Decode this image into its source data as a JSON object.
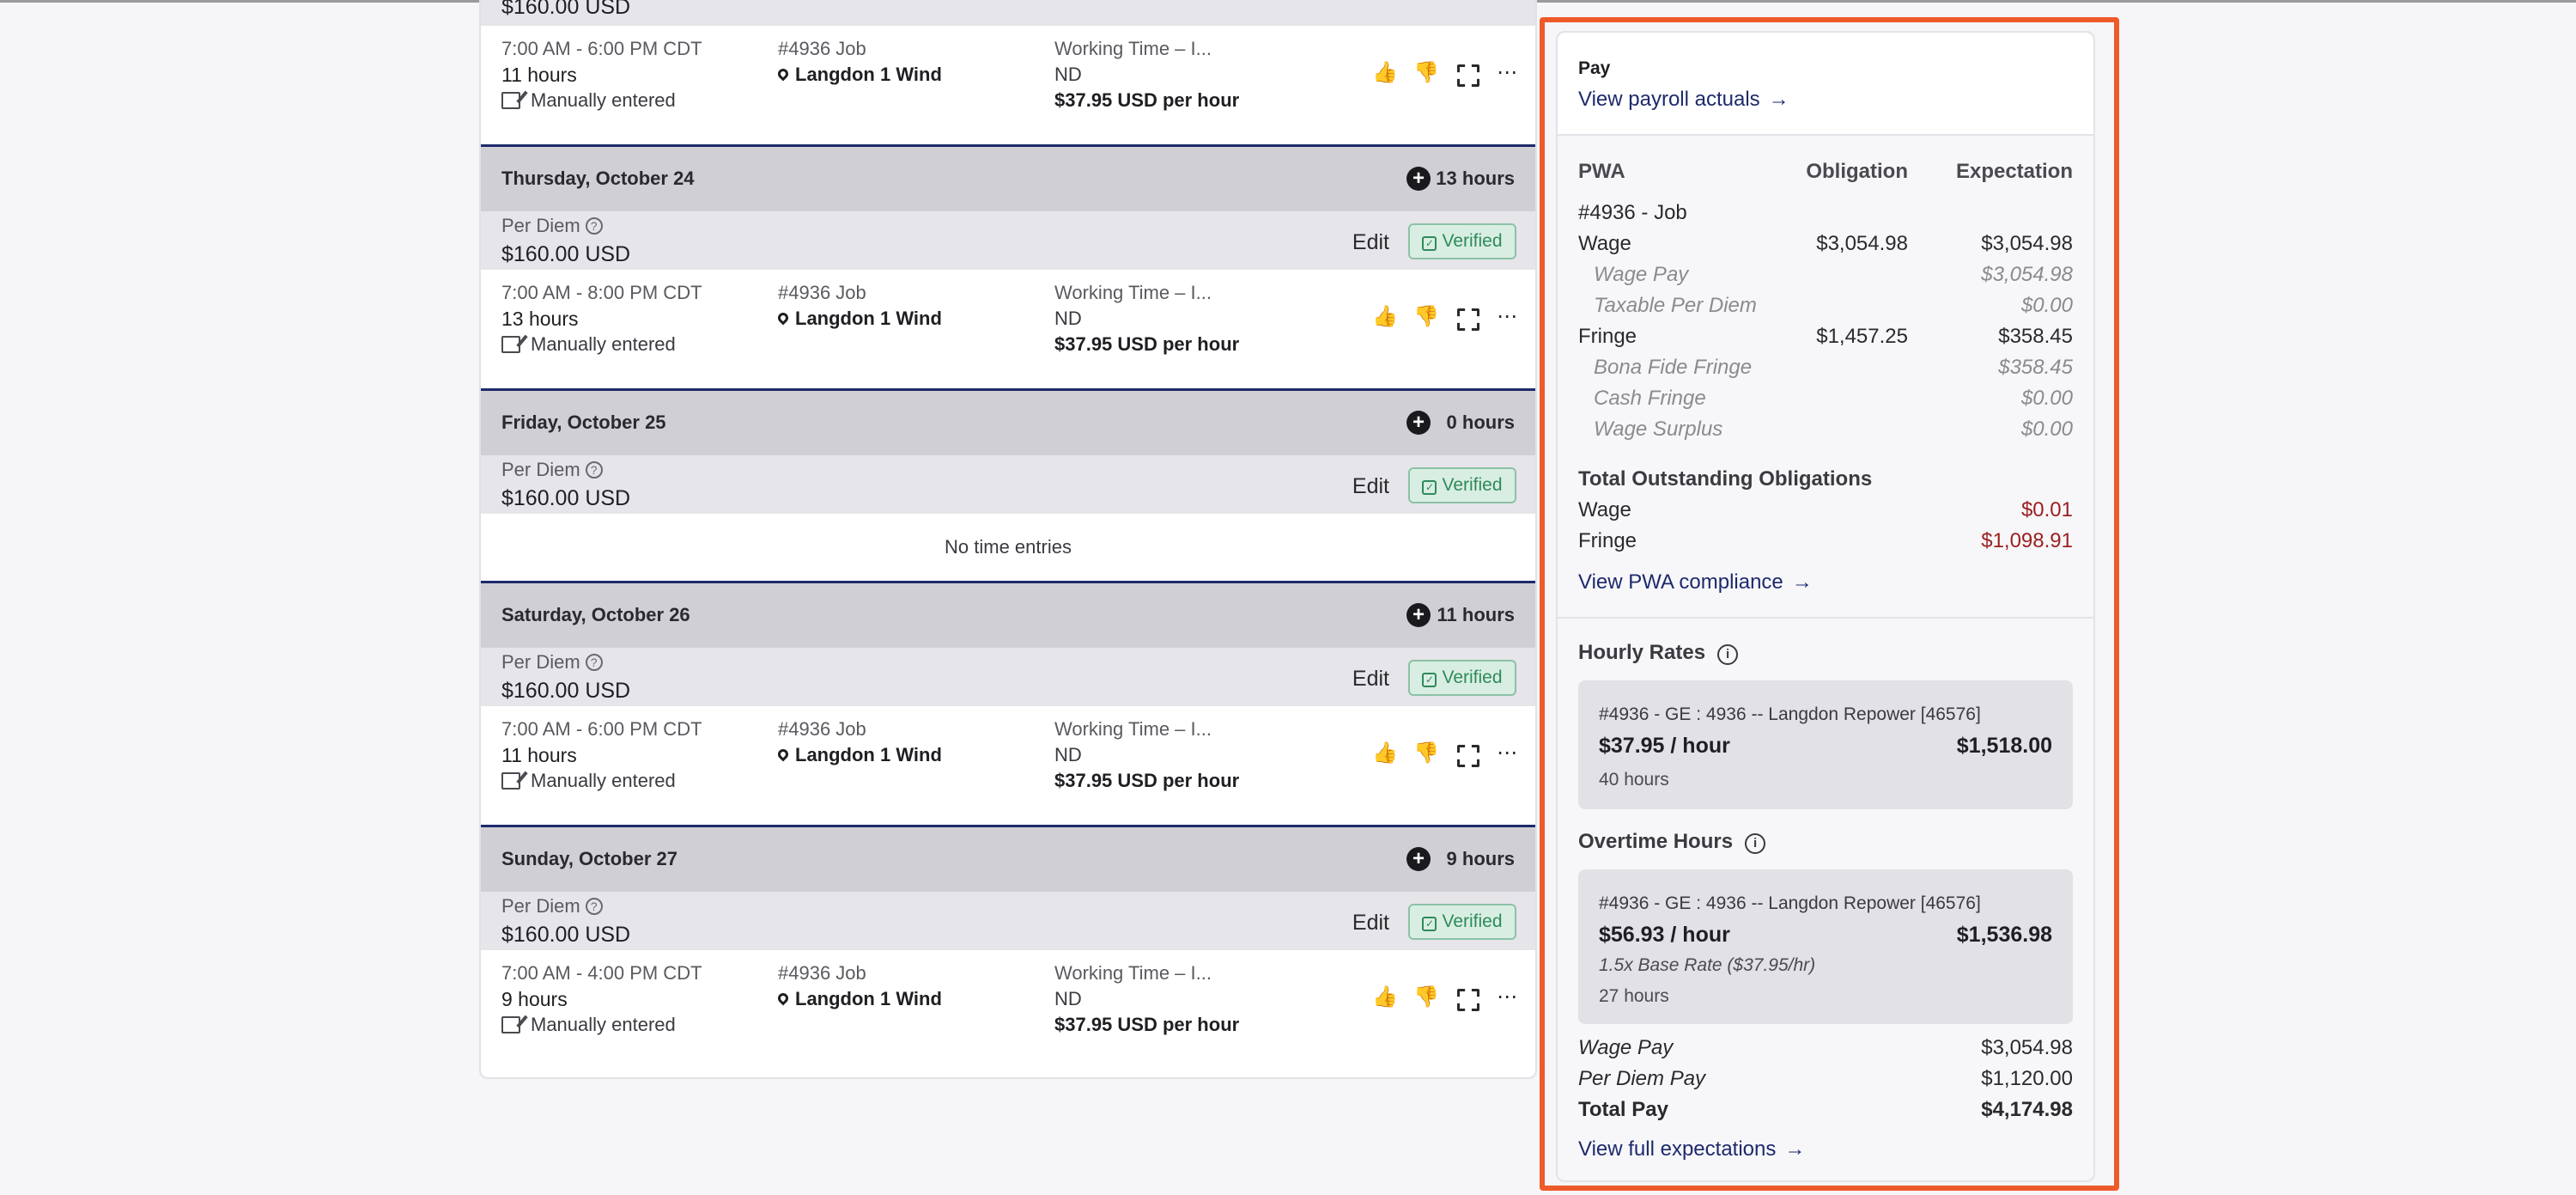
{
  "top_entry": {
    "per_diem_amount": "$160.00 USD",
    "time_range": "7:00 AM - 6:00 PM CDT",
    "hours": "11 hours",
    "entry_method": "Manually entered",
    "job": "#4936 Job",
    "location": "Langdon 1 Wind",
    "classification": "Working Time – I...",
    "state": "ND",
    "rate": "$37.95 USD per hour"
  },
  "days": [
    {
      "name": "Thursday, October 24",
      "hours": "13 hours",
      "per_diem_label": "Per Diem",
      "per_diem_amount": "$160.00 USD",
      "edit_label": "Edit",
      "verified_label": "Verified",
      "entry": {
        "time_range": "7:00 AM - 8:00 PM CDT",
        "hours": "13 hours",
        "entry_method": "Manually entered",
        "job": "#4936 Job",
        "location": "Langdon 1 Wind",
        "classification": "Working Time – I...",
        "state": "ND",
        "rate": "$37.95 USD per hour"
      }
    },
    {
      "name": "Friday, October 25",
      "hours": "0 hours",
      "per_diem_label": "Per Diem",
      "per_diem_amount": "$160.00 USD",
      "edit_label": "Edit",
      "verified_label": "Verified",
      "no_entries": "No time entries"
    },
    {
      "name": "Saturday, October 26",
      "hours": "11 hours",
      "per_diem_label": "Per Diem",
      "per_diem_amount": "$160.00 USD",
      "edit_label": "Edit",
      "verified_label": "Verified",
      "entry": {
        "time_range": "7:00 AM - 6:00 PM CDT",
        "hours": "11 hours",
        "entry_method": "Manually entered",
        "job": "#4936 Job",
        "location": "Langdon 1 Wind",
        "classification": "Working Time – I...",
        "state": "ND",
        "rate": "$37.95 USD per hour"
      }
    },
    {
      "name": "Sunday, October 27",
      "hours": "9 hours",
      "per_diem_label": "Per Diem",
      "per_diem_amount": "$160.00 USD",
      "edit_label": "Edit",
      "verified_label": "Verified",
      "entry": {
        "time_range": "7:00 AM - 4:00 PM CDT",
        "hours": "9 hours",
        "entry_method": "Manually entered",
        "job": "#4936 Job",
        "location": "Langdon 1 Wind",
        "classification": "Working Time – I...",
        "state": "ND",
        "rate": "$37.95 USD per hour"
      }
    }
  ],
  "pay": {
    "title": "Pay",
    "payroll_link": "View payroll actuals",
    "table": {
      "col_pwa": "PWA",
      "col_obligation": "Obligation",
      "col_expectation": "Expectation",
      "job": "#4936 - Job",
      "rows": [
        {
          "label": "Wage",
          "obligation": "$3,054.98",
          "expectation": "$3,054.98"
        },
        {
          "label": "Wage Pay",
          "obligation": "",
          "expectation": "$3,054.98"
        },
        {
          "label": "Taxable Per Diem",
          "obligation": "",
          "expectation": "$0.00"
        },
        {
          "label": "Fringe",
          "obligation": "$1,457.25",
          "expectation": "$358.45"
        },
        {
          "label": "Bona Fide Fringe",
          "obligation": "",
          "expectation": "$358.45"
        },
        {
          "label": "Cash Fringe",
          "obligation": "",
          "expectation": "$0.00"
        },
        {
          "label": "Wage Surplus",
          "obligation": "",
          "expectation": "$0.00"
        }
      ]
    },
    "outstanding": {
      "title": "Total Outstanding Obligations",
      "wage_label": "Wage",
      "wage_value": "$0.01",
      "fringe_label": "Fringe",
      "fringe_value": "$1,098.91"
    },
    "compliance_link": "View PWA compliance",
    "hourly": {
      "title": "Hourly Rates",
      "job": "#4936 - GE : 4936 -- Langdon Repower [46576]",
      "rate": "$37.95 / hour",
      "total": "$1,518.00",
      "hours": "40 hours"
    },
    "overtime": {
      "title": "Overtime Hours",
      "job": "#4936 - GE : 4936 -- Langdon Repower [46576]",
      "rate": "$56.93 / hour",
      "total": "$1,536.98",
      "note": "1.5x Base Rate ($37.95/hr)",
      "hours": "27 hours"
    },
    "summary": {
      "wage_pay_label": "Wage Pay",
      "wage_pay": "$3,054.98",
      "per_diem_label": "Per Diem Pay",
      "per_diem": "$1,120.00",
      "total_label": "Total Pay",
      "total": "$4,174.98"
    },
    "expectations_link": "View full expectations"
  },
  "colors": {
    "accent": "#ee5a2a",
    "link": "#1d2a6b",
    "verified": "#2f8a5b",
    "outstanding": "#9a1f1f"
  }
}
